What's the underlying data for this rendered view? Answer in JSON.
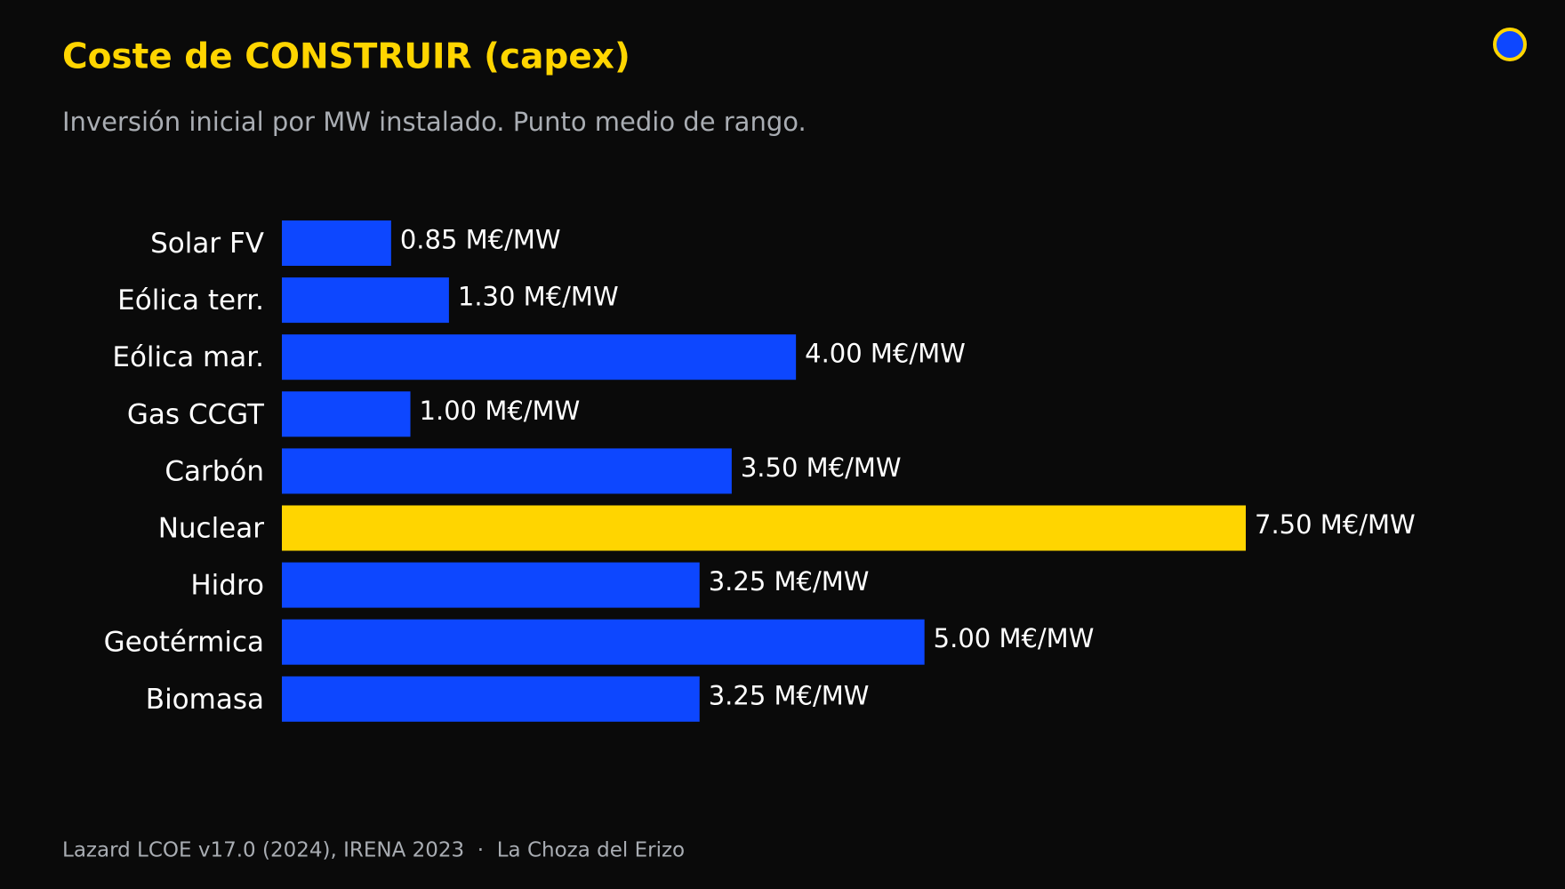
{
  "chart_data": {
    "type": "bar",
    "orientation": "horizontal",
    "title": "Coste de CONSTRUIR (capex)",
    "subtitle": "Inversión inicial por MW instalado. Punto medio de rango.",
    "source": "Lazard LCOE v17.0 (2024), IRENA 2023  ·  La Choza del Erizo",
    "categories": [
      "Solar FV",
      "Eólica terr.",
      "Eólica mar.",
      "Gas CCGT",
      "Carbón",
      "Nuclear",
      "Hidro",
      "Geotérmica",
      "Biomasa"
    ],
    "values": [
      0.85,
      1.3,
      4.0,
      1.0,
      3.5,
      7.5,
      3.25,
      5.0,
      3.25
    ],
    "value_labels": [
      "0.85 M€/MW",
      "1.30 M€/MW",
      "4.00 M€/MW",
      "1.00 M€/MW",
      "3.50 M€/MW",
      "7.50 M€/MW",
      "3.25 M€/MW",
      "5.00 M€/MW",
      "3.25 M€/MW"
    ],
    "colors": [
      "#0d47ff",
      "#0d47ff",
      "#0d47ff",
      "#0d47ff",
      "#0d47ff",
      "#ffd500",
      "#0d47ff",
      "#0d47ff",
      "#0d47ff"
    ]
  }
}
